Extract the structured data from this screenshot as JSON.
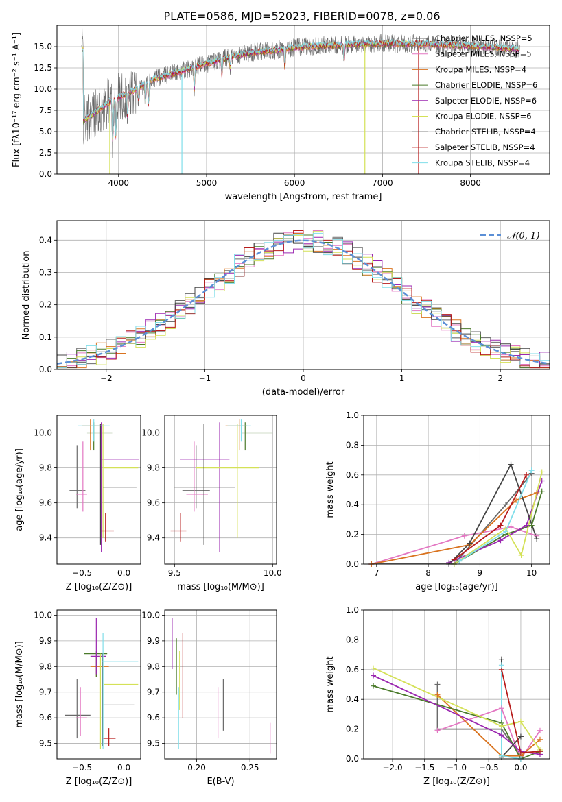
{
  "figure_title": "PLATE=0586, MJD=52023, FIBERID=0078, z=0.06",
  "legend_series": [
    {
      "name": "Chabrier MILES, N$_{SSP}$=5",
      "color": "#6a6a6a"
    },
    {
      "name": "Salpeter MILES, N$_{SSP}$=5",
      "color": "#e377c2"
    },
    {
      "name": "Kroupa MILES, N$_{SSP}$=4",
      "color": "#d9731f"
    },
    {
      "name": "Chabrier ELODIE, N$_{SSP}$=6",
      "color": "#4a7a2a"
    },
    {
      "name": "Salpeter ELODIE, N$_{SSP}$=6",
      "color": "#9b27b0"
    },
    {
      "name": "Kroupa ELODIE, N$_{SSP}$=6",
      "color": "#d4e157"
    },
    {
      "name": "Chabrier STELIB, N$_{SSP}$=4",
      "color": "#444444"
    },
    {
      "name": "Salpeter STELIB, N$_{SSP}$=4",
      "color": "#b71c1c"
    },
    {
      "name": "Kroupa STELIB, N$_{SSP}$=4",
      "color": "#80deea"
    }
  ],
  "chart_data": [
    {
      "id": "spectrum",
      "type": "line",
      "xlabel": "wavelength [Angstrom, rest frame]",
      "ylabel": "Flux [f$_\\lambda$10$^{-17}$ erg cm$^{-2}$ s$^{-1}$ A$^{-1}$]",
      "xlim": [
        3300,
        8900
      ],
      "ylim": [
        0,
        17.5
      ],
      "xticks": [
        4000,
        5000,
        6000,
        7000,
        8000
      ],
      "yticks": [
        0.0,
        2.5,
        5.0,
        7.5,
        10.0,
        12.5,
        15.0
      ],
      "ytick_labels": [
        "0.0",
        "2.5",
        "5.0",
        "7.5",
        "10.0",
        "12.5",
        "15.0"
      ],
      "xtick_labels": [
        "4000",
        "5000",
        "6000",
        "7000",
        "8000"
      ],
      "x_range": [
        3580,
        8560
      ],
      "continuum": [
        [
          3600,
          6.2
        ],
        [
          3700,
          7.0
        ],
        [
          3800,
          7.8
        ],
        [
          3900,
          8.5
        ],
        [
          4000,
          9.0
        ],
        [
          4200,
          10.0
        ],
        [
          4400,
          11.2
        ],
        [
          4600,
          11.8
        ],
        [
          4800,
          12.4
        ],
        [
          5000,
          13.0
        ],
        [
          5200,
          13.6
        ],
        [
          5500,
          14.3
        ],
        [
          5800,
          14.6
        ],
        [
          6000,
          14.9
        ],
        [
          6300,
          15.1
        ],
        [
          6600,
          15.2
        ],
        [
          7000,
          15.4
        ],
        [
          7500,
          15.3
        ],
        [
          8000,
          15.1
        ],
        [
          8300,
          14.9
        ],
        [
          8550,
          14.7
        ]
      ]
    },
    {
      "id": "residuals",
      "type": "line",
      "xlabel": "(data-model)/error",
      "ylabel": "Normed distribution",
      "xlim": [
        -2.5,
        2.5
      ],
      "ylim": [
        0,
        0.46
      ],
      "xticks": [
        -2,
        -1,
        0,
        1,
        2
      ],
      "xtick_labels": [
        "−2",
        "−1",
        "0",
        "1",
        "2"
      ],
      "yticks": [
        0.0,
        0.1,
        0.2,
        0.3,
        0.4
      ],
      "ytick_labels": [
        "0.0",
        "0.1",
        "0.2",
        "0.3",
        "0.4"
      ],
      "legend_label": "$\\mathcal{N}(0,1)$",
      "bin_width": 0.1
    },
    {
      "id": "age-vs-Z",
      "type": "scatter",
      "xlabel": "Z [log$_{10}$(Z/Z$_\\odot$)]",
      "ylabel": "age  [log$_{10}$(age/yr)]",
      "xlim": [
        -0.8,
        0.2
      ],
      "ylim": [
        9.25,
        10.1
      ],
      "xticks": [
        -0.5,
        0.0
      ],
      "xtick_labels": [
        "−0.5",
        "0.0"
      ],
      "yticks": [
        9.4,
        9.6,
        9.8,
        10.0
      ],
      "ytick_labels": [
        "9.4",
        "9.6",
        "9.8",
        "10.0"
      ],
      "points": [
        {
          "x": -0.56,
          "y": 9.67,
          "xe": [
            -0.65,
            -0.46
          ],
          "ye": [
            9.57,
            9.93
          ],
          "c": 0
        },
        {
          "x": -0.49,
          "y": 9.65,
          "xe": [
            -0.57,
            -0.44
          ],
          "ye": [
            9.55,
            9.95
          ],
          "c": 1
        },
        {
          "x": -0.4,
          "y": 10.04,
          "xe": [
            -0.5,
            -0.25
          ],
          "ye": [
            9.9,
            10.08
          ],
          "c": 2
        },
        {
          "x": -0.36,
          "y": 10.0,
          "xe": [
            -0.44,
            -0.14
          ],
          "ye": [
            9.9,
            10.06
          ],
          "c": 3
        },
        {
          "x": -0.27,
          "y": 9.85,
          "xe": [
            -0.28,
            0.18
          ],
          "ye": [
            9.32,
            10.06
          ],
          "c": 4
        },
        {
          "x": -0.25,
          "y": 9.8,
          "xe": [
            -0.24,
            0.17
          ],
          "ye": [
            9.4,
            10.05
          ],
          "c": 5
        },
        {
          "x": -0.28,
          "y": 9.69,
          "xe": [
            -0.25,
            0.15
          ],
          "ye": [
            9.36,
            10.05
          ],
          "c": 6
        },
        {
          "x": -0.22,
          "y": 9.44,
          "xe": [
            -0.28,
            -0.12
          ],
          "ye": [
            9.38,
            9.54
          ],
          "c": 7
        },
        {
          "x": -0.36,
          "y": 10.04,
          "xe": [
            -0.55,
            -0.17
          ],
          "ye": [
            9.95,
            10.08
          ],
          "c": 8
        }
      ]
    },
    {
      "id": "age-vs-mass",
      "type": "scatter",
      "xlabel": "mass [log$_{10}$(M/M$_\\odot$)]",
      "ylabel": "",
      "xlim": [
        9.45,
        10.02
      ],
      "ylim": [
        9.25,
        10.1
      ],
      "xticks": [
        9.5,
        10.0
      ],
      "xtick_labels": [
        "9.5",
        "10.0"
      ],
      "yticks": [
        9.4,
        9.6,
        9.8,
        10.0
      ],
      "ytick_labels": [
        "9.4",
        "9.6",
        "9.8",
        "10.0"
      ],
      "points": [
        {
          "x": 9.61,
          "y": 9.67,
          "xe": [
            9.54,
            9.68
          ],
          "ye": [
            9.57,
            9.93
          ],
          "c": 0
        },
        {
          "x": 9.6,
          "y": 9.65,
          "xe": [
            9.56,
            9.67
          ],
          "ye": [
            9.55,
            9.95
          ],
          "c": 1
        },
        {
          "x": 9.83,
          "y": 10.04,
          "xe": [
            9.76,
            9.87
          ],
          "ye": [
            9.9,
            10.08
          ],
          "c": 2
        },
        {
          "x": 9.86,
          "y": 10.0,
          "xe": [
            9.84,
            10.0
          ],
          "ye": [
            9.9,
            10.06
          ],
          "c": 3
        },
        {
          "x": 9.73,
          "y": 9.85,
          "xe": [
            9.53,
            9.78
          ],
          "ye": [
            9.32,
            10.06
          ],
          "c": 4
        },
        {
          "x": 9.82,
          "y": 9.8,
          "xe": [
            9.61,
            9.93
          ],
          "ye": [
            9.4,
            10.05
          ],
          "c": 5
        },
        {
          "x": 9.65,
          "y": 9.69,
          "xe": [
            9.5,
            9.81
          ],
          "ye": [
            9.36,
            10.05
          ],
          "c": 6
        },
        {
          "x": 9.53,
          "y": 9.44,
          "xe": [
            9.48,
            9.56
          ],
          "ye": [
            9.38,
            9.54
          ],
          "c": 7
        },
        {
          "x": 9.84,
          "y": 10.04,
          "xe": [
            9.77,
            9.89
          ],
          "ye": [
            9.95,
            10.08
          ],
          "c": 8
        }
      ]
    },
    {
      "id": "mass-weight-vs-age",
      "type": "line",
      "xlabel": "age  [log$_{10}$(age/yr)]",
      "ylabel": "mass weight",
      "xlim": [
        6.75,
        10.35
      ],
      "ylim": [
        0,
        1.0
      ],
      "xticks": [
        7,
        8,
        9,
        10
      ],
      "xtick_labels": [
        "7",
        "8",
        "9",
        "10"
      ],
      "yticks": [
        0.0,
        0.2,
        0.4,
        0.6,
        0.8,
        1.0
      ],
      "ytick_labels": [
        "0.0",
        "0.2",
        "0.4",
        "0.6",
        "0.8",
        "1.0"
      ],
      "series": [
        {
          "c": 0,
          "x": [
            6.9,
            8.5,
            9.5,
            10.0
          ],
          "y": [
            0.0,
            0.0,
            0.4,
            0.61
          ]
        },
        {
          "c": 1,
          "x": [
            6.9,
            8.7,
            9.6,
            10.1
          ],
          "y": [
            0.0,
            0.19,
            0.25,
            0.19
          ]
        },
        {
          "c": 2,
          "x": [
            6.9,
            8.8,
            9.7,
            10.1
          ],
          "y": [
            0.0,
            0.13,
            0.43,
            0.48
          ]
        },
        {
          "c": 3,
          "x": [
            8.5,
            9.5,
            10.0,
            10.2
          ],
          "y": [
            0.0,
            0.2,
            0.26,
            0.49
          ]
        },
        {
          "c": 4,
          "x": [
            8.4,
            9.4,
            9.9,
            10.2
          ],
          "y": [
            0.01,
            0.16,
            0.26,
            0.56
          ]
        },
        {
          "c": 5,
          "x": [
            8.5,
            9.5,
            9.8,
            10.2
          ],
          "y": [
            0.0,
            0.24,
            0.06,
            0.62
          ]
        },
        {
          "c": 6,
          "x": [
            8.4,
            8.8,
            9.6,
            10.1
          ],
          "y": [
            0.0,
            0.14,
            0.67,
            0.17
          ]
        },
        {
          "c": 7,
          "x": [
            8.5,
            9.4,
            9.9
          ],
          "y": [
            0.03,
            0.26,
            0.6
          ]
        },
        {
          "c": 8,
          "x": [
            8.6,
            9.5,
            10.0
          ],
          "y": [
            0.02,
            0.22,
            0.63
          ]
        }
      ]
    },
    {
      "id": "mass-vs-Z",
      "type": "scatter",
      "xlabel": "Z [log$_{10}$(Z/Z$_\\odot$)]",
      "ylabel": "mass [log$_{10}$(M/M$_\\odot$)]",
      "xlim": [
        -0.8,
        0.2
      ],
      "ylim": [
        9.44,
        10.02
      ],
      "xticks": [
        -0.5,
        0.0
      ],
      "xtick_labels": [
        "−0.5",
        "0.0"
      ],
      "yticks": [
        9.5,
        9.6,
        9.7,
        9.8,
        9.9,
        10.0
      ],
      "ytick_labels": [
        "9.5",
        "9.6",
        "9.7",
        "9.8",
        "9.9",
        "10.0"
      ],
      "points": [
        {
          "x": -0.56,
          "y": 9.61,
          "xe": [
            -0.71,
            -0.4
          ],
          "ye": [
            9.52,
            9.75
          ],
          "c": 0
        },
        {
          "x": -0.52,
          "y": 9.6,
          "xe": [
            -0.57,
            -0.44
          ],
          "ye": [
            9.53,
            9.72
          ],
          "c": 1
        },
        {
          "x": -0.33,
          "y": 9.8,
          "xe": [
            -0.4,
            -0.18
          ],
          "ye": [
            9.76,
            9.84
          ],
          "c": 2
        },
        {
          "x": -0.33,
          "y": 9.85,
          "xe": [
            -0.48,
            -0.2
          ],
          "ye": [
            9.76,
            9.86
          ],
          "c": 3
        },
        {
          "x": -0.33,
          "y": 9.84,
          "xe": [
            -0.4,
            -0.21
          ],
          "ye": [
            9.77,
            9.99
          ],
          "c": 4
        },
        {
          "x": -0.28,
          "y": 9.73,
          "xe": [
            -0.24,
            0.17
          ],
          "ye": [
            9.48,
            9.85
          ],
          "c": 5
        },
        {
          "x": -0.26,
          "y": 9.65,
          "xe": [
            -0.25,
            0.13
          ],
          "ye": [
            9.49,
            9.85
          ],
          "c": 6
        },
        {
          "x": -0.18,
          "y": 9.52,
          "xe": [
            -0.26,
            -0.1
          ],
          "ye": [
            9.49,
            9.56
          ],
          "c": 7
        },
        {
          "x": -0.25,
          "y": 9.82,
          "xe": [
            -0.26,
            0.17
          ],
          "ye": [
            9.48,
            9.93
          ],
          "c": 8
        }
      ]
    },
    {
      "id": "mass-vs-EBV",
      "type": "scatter",
      "xlabel": "E(B-V)",
      "ylabel": "",
      "xlim": [
        0.17,
        0.275
      ],
      "ylim": [
        9.44,
        10.02
      ],
      "xticks": [
        0.2,
        0.25
      ],
      "xtick_labels": [
        "0.20",
        "0.25"
      ],
      "yticks": [
        9.5,
        9.6,
        9.7,
        9.8,
        9.9,
        10.0
      ],
      "ytick_labels": [
        "9.5",
        "9.6",
        "9.7",
        "9.8",
        "9.9",
        "10.0"
      ],
      "points": [
        {
          "x": 0.225,
          "ye": [
            9.55,
            9.75
          ],
          "c": 0
        },
        {
          "x": 0.22,
          "ye": [
            9.52,
            9.72
          ],
          "c": 1
        },
        {
          "x": 0.177,
          "ye": [
            9.79,
            9.99
          ],
          "c": 4
        },
        {
          "x": 0.181,
          "ye": [
            9.69,
            9.91
          ],
          "c": 3
        },
        {
          "x": 0.184,
          "ye": [
            9.63,
            9.86
          ],
          "c": 5
        },
        {
          "x": 0.187,
          "ye": [
            9.6,
            9.93
          ],
          "c": 7
        },
        {
          "x": 0.269,
          "ye": [
            9.46,
            9.58
          ],
          "c": 1
        },
        {
          "x": 0.183,
          "ye": [
            9.48,
            9.72
          ],
          "c": 8
        }
      ]
    },
    {
      "id": "mass-weight-vs-Z",
      "type": "line",
      "xlabel": "Z [log$_{10}$(Z/Z$_\\odot$)]",
      "ylabel": "mass weight",
      "xlim": [
        -2.45,
        0.45
      ],
      "ylim": [
        0,
        1.0
      ],
      "xticks": [
        -2.0,
        -1.5,
        -1.0,
        -0.5,
        0.0
      ],
      "xtick_labels": [
        "−2.0",
        "−1.5",
        "−1.0",
        "−0.5",
        "0.0"
      ],
      "yticks": [
        0.0,
        0.2,
        0.4,
        0.6,
        0.8,
        1.0
      ],
      "ytick_labels": [
        "0.0",
        "0.2",
        "0.4",
        "0.6",
        "0.8",
        "1.0"
      ],
      "series": [
        {
          "c": 0,
          "x": [
            -1.3,
            -1.3,
            -0.3,
            0.0
          ],
          "y": [
            0.5,
            0.2,
            0.2,
            0.02
          ]
        },
        {
          "c": 1,
          "x": [
            -1.3,
            -0.3,
            0.0,
            0.3
          ],
          "y": [
            0.19,
            0.34,
            0.0,
            0.19
          ]
        },
        {
          "c": 2,
          "x": [
            -1.3,
            -0.3,
            0.0,
            0.3
          ],
          "y": [
            0.43,
            0.02,
            0.02,
            0.13
          ]
        },
        {
          "c": 3,
          "x": [
            -2.3,
            -0.3,
            0.0,
            0.3
          ],
          "y": [
            0.49,
            0.24,
            0.0,
            0.05
          ]
        },
        {
          "c": 4,
          "x": [
            -2.3,
            -0.3,
            0.0,
            0.3
          ],
          "y": [
            0.56,
            0.16,
            0.05,
            0.03
          ]
        },
        {
          "c": 5,
          "x": [
            -2.3,
            -0.3,
            0.0,
            0.3
          ],
          "y": [
            0.61,
            0.22,
            0.25,
            0.06
          ]
        },
        {
          "c": 6,
          "x": [
            -0.3,
            -0.3,
            0.0
          ],
          "y": [
            0.67,
            0.01,
            0.15
          ]
        },
        {
          "c": 7,
          "x": [
            -0.3,
            0.0,
            0.3
          ],
          "y": [
            0.6,
            0.04,
            0.05
          ]
        },
        {
          "c": 8,
          "x": [
            -0.3,
            -0.3,
            0.0
          ],
          "y": [
            0.63,
            0.02,
            0.0
          ]
        }
      ]
    }
  ]
}
